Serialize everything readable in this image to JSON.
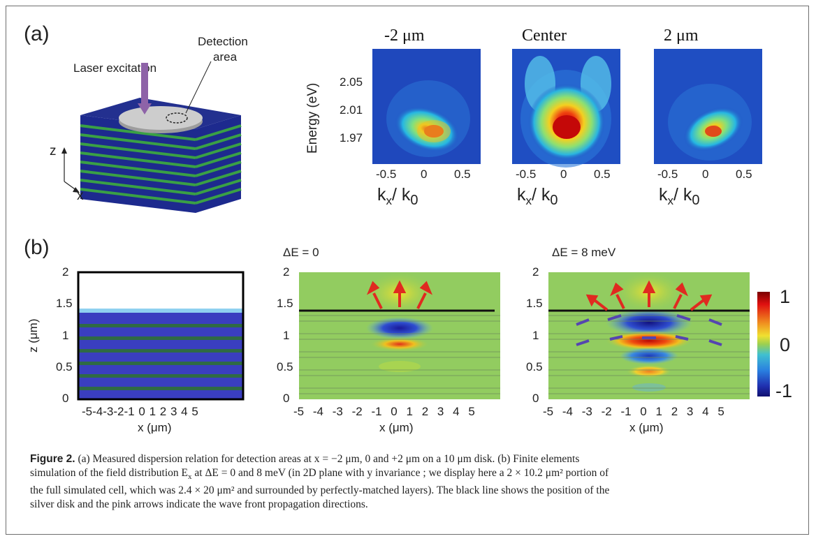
{
  "panel_a": {
    "label": "(a)",
    "schematic": {
      "laser_label": "Laser excitation",
      "detection_label_line1": "Detection",
      "detection_label_line2": "area",
      "axis_z": "z",
      "axis_x": "x",
      "colors": {
        "layer_blue": "#1d2a8e",
        "layer_green": "#3aa045",
        "disk": "#c9c9c9",
        "laser": "#8e63a8"
      }
    },
    "maps": [
      {
        "title": "-2 μm",
        "xticks": [
          "-0.5",
          "0",
          "0.5"
        ],
        "xlabel": "k",
        "xlabel_sub": "x",
        "xlabel_rest": "/ k",
        "xlabel_sub2": "0"
      },
      {
        "title": "Center",
        "xticks": [
          "-0.5",
          "0",
          "0.5"
        ],
        "xlabel": "k",
        "xlabel_sub": "x",
        "xlabel_rest": "/ k",
        "xlabel_sub2": "0"
      },
      {
        "title": "2 μm",
        "xticks": [
          "-0.5",
          "0",
          "0.5"
        ],
        "xlabel": "k",
        "xlabel_sub": "x",
        "xlabel_rest": "/ k",
        "xlabel_sub2": "0"
      }
    ],
    "ylabel": "Energy (eV)",
    "yticks": [
      "2.05",
      "2.01",
      "1.97"
    ]
  },
  "panel_b": {
    "label": "(b)",
    "structure": {
      "yticks": [
        "2",
        "1.5",
        "1",
        "0.5",
        "0"
      ],
      "xticks": [
        "-5",
        "-4",
        "-3",
        "-2",
        "-1",
        "0",
        "1",
        "2",
        "3",
        "4",
        "5"
      ],
      "xlabel": "x (μm)",
      "ylabel": "z (μm)"
    },
    "field0": {
      "title": "ΔE = 0",
      "yticks": [
        "2",
        "1.5",
        "1",
        "0.5",
        "0"
      ],
      "xticks": [
        "-5",
        "-4",
        "-3",
        "-2",
        "-1",
        "0",
        "1",
        "2",
        "3",
        "4",
        "5"
      ],
      "xlabel": "x (μm)"
    },
    "field8": {
      "title": "ΔE = 8 meV",
      "yticks": [
        "2",
        "1.5",
        "1",
        "0.5",
        "0"
      ],
      "xticks": [
        "-5",
        "-4",
        "-3",
        "-2",
        "-1",
        "0",
        "1",
        "2",
        "3",
        "4",
        "5"
      ],
      "xlabel": "x (μm)"
    },
    "colorbar": {
      "ticks": [
        "1",
        "0",
        "-1"
      ]
    }
  },
  "caption": {
    "fig_label": "Figure 2.",
    "line1": " (a) Measured dispersion relation for detection areas at x = −2 μm, 0 and +2 μm on a 10 μm disk. (b) Finite elements",
    "line2": "simulation of the field distribution E",
    "line2_sub": "x",
    "line2_rest": " at ΔE = 0 and 8 meV (in 2D plane with y invariance ; we display here a 2 × 10.2 μm² portion of",
    "line3": "the full simulated cell, which was 2.4 × 20 μm² and surrounded by perfectly-matched layers). The black line shows the position of the",
    "line4": "silver disk and the pink arrows indicate the wave front propagation directions."
  }
}
